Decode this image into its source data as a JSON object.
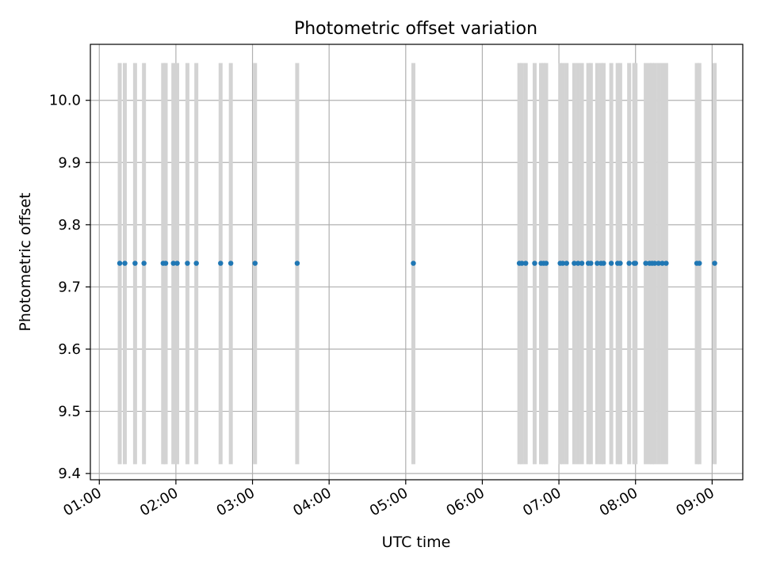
{
  "chart_data": {
    "type": "scatter",
    "title": "Photometric offset variation",
    "xlabel": "UTC time",
    "ylabel": "Photometric offset",
    "xlim": [
      "00:53",
      "09:24"
    ],
    "ylim": [
      9.39,
      10.09
    ],
    "xticks": [
      "01:00",
      "02:00",
      "03:00",
      "04:00",
      "05:00",
      "06:00",
      "07:00",
      "08:00",
      "09:00"
    ],
    "yticks": [
      "9.4",
      "9.5",
      "9.6",
      "9.7",
      "9.8",
      "9.9",
      "10.0"
    ],
    "grid": true,
    "error_bar_range": [
      9.415,
      10.06
    ],
    "colors": {
      "points": "#1f77b4",
      "error_bars": "#d3d3d3",
      "grid": "#b0b0b0"
    },
    "series": [
      {
        "y": 9.738,
        "x": [
          "01:16",
          "01:20",
          "01:28",
          "01:35",
          "01:50",
          "01:52",
          "01:58",
          "02:01",
          "02:09",
          "02:16",
          "02:35",
          "02:43",
          "03:02",
          "03:35",
          "05:06",
          "06:29",
          "06:31",
          "06:34",
          "06:41",
          "06:46",
          "06:48",
          "06:50",
          "07:01",
          "07:03",
          "07:06",
          "07:12",
          "07:15",
          "07:18",
          "07:23",
          "07:25",
          "07:30",
          "07:33",
          "07:35",
          "07:41",
          "07:46",
          "07:48",
          "07:55",
          "07:59",
          "08:00",
          "08:08",
          "08:11",
          "08:13",
          "08:15",
          "08:18",
          "08:21",
          "08:24",
          "08:48",
          "08:50",
          "09:02"
        ]
      }
    ]
  }
}
